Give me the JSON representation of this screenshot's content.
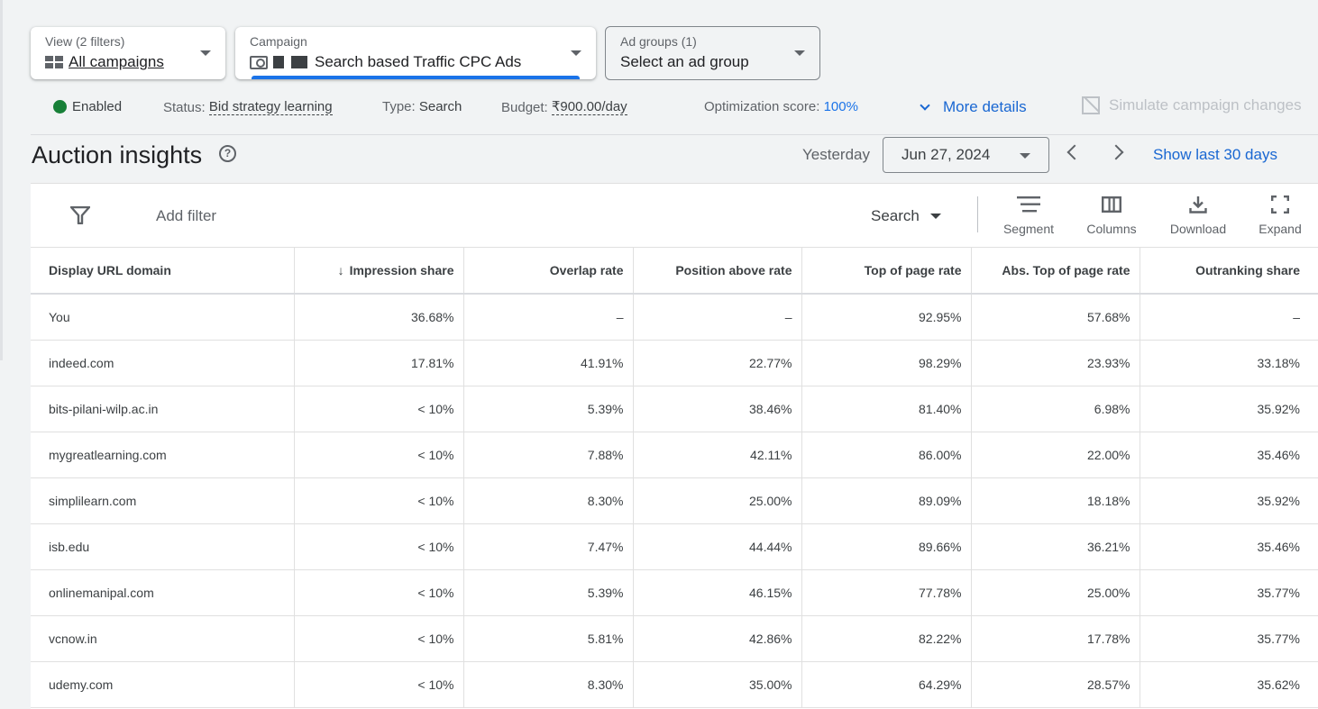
{
  "selectors": {
    "view": {
      "label": "View (2 filters)",
      "value": "All campaigns",
      "icon": "grid-icon"
    },
    "campaign": {
      "label": "Campaign",
      "value": "Search based Traffic CPC Ads",
      "icon": "search-campaign-icon"
    },
    "ad_group": {
      "label": "Ad groups (1)",
      "value": "Select an ad group"
    }
  },
  "status_bar": {
    "state": "Enabled",
    "state_color": "#188038",
    "status_label": "Status:",
    "status_value": "Bid strategy learning",
    "type_label": "Type:",
    "type_value": "Search",
    "budget_label": "Budget:",
    "budget_value": "₹900.00/day",
    "optimization_label": "Optimization score:",
    "optimization_value": "100%",
    "more_details": "More details",
    "simulate": "Simulate campaign changes"
  },
  "header": {
    "title": "Auction insights",
    "date_label": "Yesterday",
    "date_value": "Jun 27, 2024",
    "show_last": "Show last 30 days"
  },
  "toolbar": {
    "add_filter": "Add filter",
    "network": "Search",
    "segment": "Segment",
    "columns": "Columns",
    "download": "Download",
    "expand": "Expand"
  },
  "table": {
    "columns": [
      "Display URL domain",
      "Impression share",
      "Overlap rate",
      "Position above rate",
      "Top of page rate",
      "Abs. Top of page rate",
      "Outranking share"
    ],
    "sorted_column": "Impression share",
    "sort_direction": "descending",
    "rows": [
      [
        "You",
        "36.68%",
        "–",
        "–",
        "92.95%",
        "57.68%",
        "–"
      ],
      [
        "indeed.com",
        "17.81%",
        "41.91%",
        "22.77%",
        "98.29%",
        "23.93%",
        "33.18%"
      ],
      [
        "bits-pilani-wilp.ac.in",
        "< 10%",
        "5.39%",
        "38.46%",
        "81.40%",
        "6.98%",
        "35.92%"
      ],
      [
        "mygreatlearning.com",
        "< 10%",
        "7.88%",
        "42.11%",
        "86.00%",
        "22.00%",
        "35.46%"
      ],
      [
        "simplilearn.com",
        "< 10%",
        "8.30%",
        "25.00%",
        "89.09%",
        "18.18%",
        "35.92%"
      ],
      [
        "isb.edu",
        "< 10%",
        "7.47%",
        "44.44%",
        "89.66%",
        "36.21%",
        "35.46%"
      ],
      [
        "onlinemanipal.com",
        "< 10%",
        "5.39%",
        "46.15%",
        "77.78%",
        "25.00%",
        "35.77%"
      ],
      [
        "vcnow.in",
        "< 10%",
        "5.81%",
        "42.86%",
        "82.22%",
        "17.78%",
        "35.77%"
      ],
      [
        "udemy.com",
        "< 10%",
        "8.30%",
        "35.00%",
        "64.29%",
        "28.57%",
        "35.62%"
      ]
    ]
  }
}
